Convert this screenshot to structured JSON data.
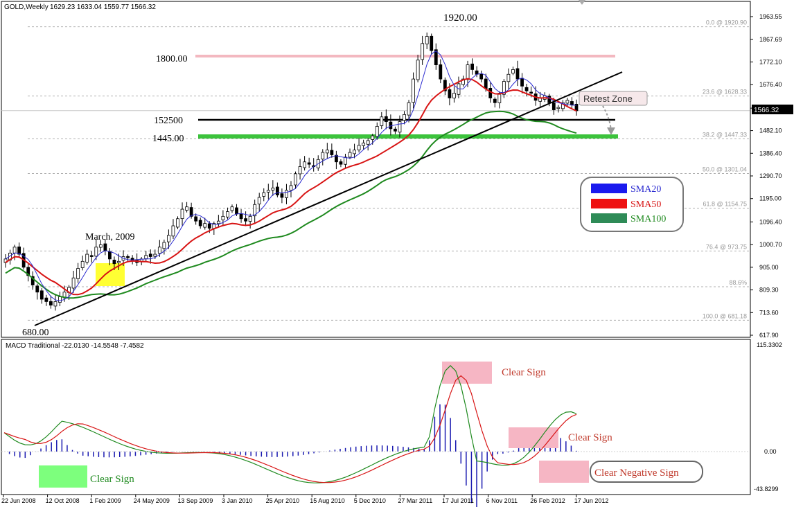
{
  "header": {
    "symbol": "GOLD,Weekly",
    "ohlc": "1629.23 1633.04 1559.77 1566.32"
  },
  "macd_header": {
    "label": "MACD Traditional -22.0130 -14.5548 -7.4582"
  },
  "current_price_label": "1566.32",
  "colors": {
    "sma20": "#2a2ad0",
    "sma50": "#d81414",
    "sma100": "#1f8a1f",
    "resistance": "#f3b8c0",
    "support_green": "#3cc33c",
    "highlight_yellow": "#ffff33",
    "highlight_pink": "#f6b6c4",
    "highlight_green": "#7dff7d",
    "annotation_red": "#c0392b"
  },
  "chart_data": [
    {
      "type": "candlestick",
      "title": "GOLD,Weekly",
      "y_ticks": [
        "1963.55",
        "1867.69",
        "1772.10",
        "1676.40",
        "1577.00",
        "1482.10",
        "1386.40",
        "1290.70",
        "1195.00",
        "1096.40",
        "1000.70",
        "905.00",
        "809.30",
        "713.60",
        "617.90"
      ],
      "x_ticks": [
        "22 Jun 2008",
        "12 Oct 2008",
        "1 Feb 2009",
        "24 May 2009",
        "13 Sep 2009",
        "3 Jan 2010",
        "25 Apr 2010",
        "15 Aug 2010",
        "5 Dec 2010",
        "27 Mar 2011",
        "17 Jul 2011",
        "6 Nov 2011",
        "26 Feb 2012",
        "17 Jun 2012"
      ],
      "ylim": [
        617.9,
        1963.55
      ],
      "fib_levels": [
        {
          "label": "0.0 @ 1920.90",
          "value": 1920.9
        },
        {
          "label": "23.6 @ 1628.33",
          "value": 1628.33
        },
        {
          "label": "38.2 @ 1447.33",
          "value": 1447.33
        },
        {
          "label": "50.0 @ 1301.04",
          "value": 1301.04
        },
        {
          "label": "61.8 @ 1154.75",
          "value": 1154.75
        },
        {
          "label": "76.4 @ 973.75",
          "value": 973.75
        },
        {
          "label": "88.6%",
          "value": 822.5
        },
        {
          "label": "100.0 @ 681.18",
          "value": 681.18
        }
      ],
      "annotations": {
        "high": "1920.00",
        "resistance": "1800.00",
        "support1": "152500",
        "support2": "1445.00",
        "low": "680.00",
        "march": "March, 2009",
        "retest": "Retest Zone"
      },
      "legend": [
        {
          "name": "SMA20"
        },
        {
          "name": "SMA50"
        },
        {
          "name": "SMA100"
        }
      ],
      "closes": [
        940,
        965,
        990,
        960,
        905,
        870,
        830,
        800,
        770,
        760,
        745,
        760,
        780,
        800,
        820,
        860,
        900,
        930,
        960,
        950,
        990,
        1000,
        975,
        940,
        920,
        930,
        950,
        945,
        935,
        925,
        940,
        955,
        950,
        960,
        990,
        1010,
        1040,
        1080,
        1110,
        1150,
        1160,
        1120,
        1100,
        1080,
        1090,
        1070,
        1090,
        1100,
        1120,
        1140,
        1160,
        1130,
        1110,
        1100,
        1120,
        1170,
        1200,
        1220,
        1230,
        1240,
        1210,
        1200,
        1230,
        1250,
        1300,
        1330,
        1350,
        1340,
        1330,
        1360,
        1390,
        1400,
        1380,
        1350,
        1340,
        1370,
        1390,
        1400,
        1420,
        1430,
        1440,
        1460,
        1500,
        1540,
        1520,
        1490,
        1480,
        1520,
        1550,
        1600,
        1700,
        1780,
        1850,
        1880,
        1820,
        1760,
        1700,
        1650,
        1620,
        1640,
        1680,
        1700,
        1760,
        1740,
        1720,
        1700,
        1660,
        1620,
        1600,
        1640,
        1690,
        1720,
        1740,
        1700,
        1670,
        1650,
        1640,
        1610,
        1620,
        1630,
        1600,
        1570,
        1580,
        1600,
        1610,
        1590,
        1566
      ]
    },
    {
      "type": "line",
      "title": "MACD Traditional -22.0130 -14.5548 -7.4582",
      "y_ticks": [
        "115.3302",
        "0.00",
        "-43.8299"
      ],
      "ylim": [
        -43.8299,
        115.3302
      ],
      "annotations": [
        "Clear Sign",
        "Clear Sign",
        "Clear Sign",
        "Clear Negative Sign"
      ]
    }
  ]
}
